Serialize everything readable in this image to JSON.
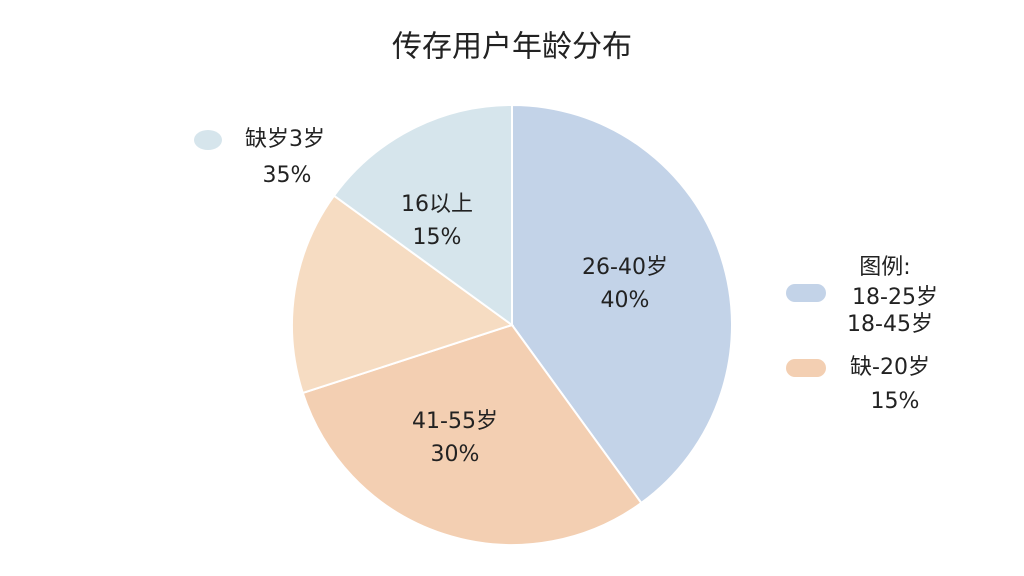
{
  "chart_data": {
    "type": "pie",
    "title": "传存用户年龄分布",
    "categories": [
      "26-40岁",
      "41-55岁",
      null,
      "16以上"
    ],
    "values": [
      40,
      30,
      15,
      15
    ],
    "value_labels": [
      "40%",
      "30%",
      null,
      "15%"
    ],
    "colors": [
      "#c3d3e8",
      "#f3cfb2",
      "#f6dcc2",
      "#d6e5ec"
    ],
    "annotations": [
      "缺岁3岁",
      "35%",
      "图例:",
      "18-25岁",
      "18-45岁",
      "缺-20岁",
      "15%"
    ]
  }
}
